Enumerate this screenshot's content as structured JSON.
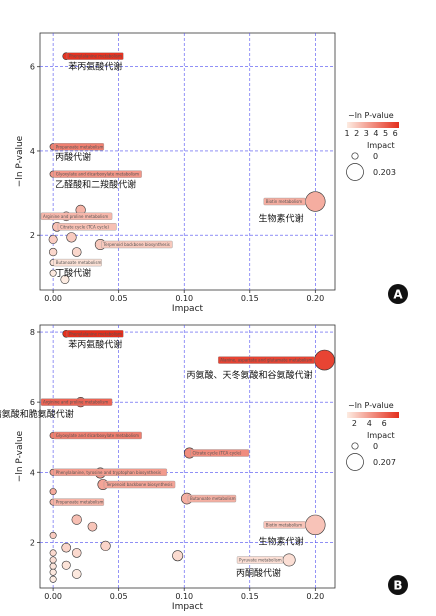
{
  "chart_data": [
    {
      "panel": "A",
      "type": "scatter",
      "xlabel": "Impact",
      "ylabel": "−ln P-value",
      "xlim": [
        -0.01,
        0.215
      ],
      "ylim": [
        0.7,
        6.8
      ],
      "xticks": [
        0.0,
        0.05,
        0.1,
        0.15,
        0.2
      ],
      "xtick_labels": [
        "0.00",
        "0.05",
        "0.10",
        "0.15",
        "0.20"
      ],
      "yticks": [
        2,
        4,
        6
      ],
      "grid": true,
      "legend": {
        "color_title": "−ln P-value",
        "color_ticks": [
          "1",
          "2",
          "3",
          "4",
          "5",
          "6"
        ],
        "color_min": 1,
        "color_max": 6.4,
        "size_title": "Impact",
        "size_items": [
          "0",
          "0.203"
        ]
      },
      "points": [
        {
          "x": 0.01,
          "y": 6.25,
          "color": 6.25,
          "size": 0.01,
          "tag": "Phenylalanine metabolism",
          "tag_side": "right",
          "note": "苯丙氨酸代谢"
        },
        {
          "x": 0.0,
          "y": 4.1,
          "color": 4.1,
          "size": 0.0,
          "tag": "Propanoate metabolism",
          "tag_side": "right",
          "note": "丙酸代谢"
        },
        {
          "x": 0.0,
          "y": 3.45,
          "color": 3.45,
          "size": 0.0,
          "tag": "Glyoxylate and dicarboxylate metabolism",
          "tag_side": "right",
          "note": "乙醛酸和二羧酸代谢"
        },
        {
          "x": 0.2,
          "y": 2.8,
          "color": 2.8,
          "size": 0.203,
          "tag": "Biotin metabolism",
          "tag_side": "left",
          "note": "生物素代谢"
        },
        {
          "x": 0.021,
          "y": 2.6,
          "color": 2.6,
          "size": 0.05
        },
        {
          "x": 0.01,
          "y": 2.45,
          "color": 2.5,
          "size": 0.04,
          "tag": "Arginine and proline metabolism",
          "tag_side": "left"
        },
        {
          "x": 0.003,
          "y": 2.2,
          "color": 2.25,
          "size": 0.04,
          "tag": "Citrate cycle (TCA cycle)",
          "tag_side": "right"
        },
        {
          "x": 0.036,
          "y": 1.78,
          "color": 2.0,
          "size": 0.06,
          "tag": "Terpenoid backbone biosynthesis",
          "tag_side": "right"
        },
        {
          "x": 0.0,
          "y": 1.9,
          "color": 1.9,
          "size": 0.03
        },
        {
          "x": 0.014,
          "y": 1.95,
          "color": 1.95,
          "size": 0.05
        },
        {
          "x": 0.018,
          "y": 1.6,
          "color": 1.6,
          "size": 0.04
        },
        {
          "x": 0.0,
          "y": 1.6,
          "color": 1.6,
          "size": 0.02
        },
        {
          "x": 0.0,
          "y": 1.35,
          "color": 1.35,
          "size": 0.0,
          "tag": "Butanoate metabolism",
          "tag_side": "right",
          "note": "丁酸代谢"
        },
        {
          "x": 0.0,
          "y": 1.1,
          "color": 1.05,
          "size": 0.0
        },
        {
          "x": 0.009,
          "y": 0.95,
          "color": 1.0,
          "size": 0.03
        }
      ]
    },
    {
      "panel": "B",
      "type": "scatter",
      "xlabel": "Impact",
      "ylabel": "−ln P-value",
      "xlim": [
        -0.01,
        0.215
      ],
      "ylim": [
        0.7,
        8.2
      ],
      "xticks": [
        0.0,
        0.05,
        0.1,
        0.15,
        0.2
      ],
      "xtick_labels": [
        "0.00",
        "0.05",
        "0.10",
        "0.15",
        "0.20"
      ],
      "yticks": [
        2,
        4,
        6,
        8
      ],
      "grid": true,
      "legend": {
        "color_title": "−ln P-value",
        "color_ticks": [
          "2",
          "4",
          "6"
        ],
        "color_min": 1,
        "color_max": 8,
        "size_title": "Impact",
        "size_items": [
          "0",
          "0.207"
        ]
      },
      "points": [
        {
          "x": 0.01,
          "y": 7.95,
          "color": 7.95,
          "size": 0.01,
          "tag": "Phenylalanine metabolism",
          "tag_side": "right",
          "note": "苯丙氨酸代谢"
        },
        {
          "x": 0.207,
          "y": 7.2,
          "color": 7.2,
          "size": 0.207,
          "tag": "Alanine, aspartate and glutamate metabolism",
          "tag_side": "left",
          "note": "丙氨酸、天冬氨酸和谷氨酸代谢"
        },
        {
          "x": 0.021,
          "y": 6.0,
          "color": 6.0,
          "size": 0.05,
          "tag": "Arginine and proline metabolism",
          "tag_side": "left",
          "note": "精氨酸和脆氨酸代谢"
        },
        {
          "x": 0.0,
          "y": 5.05,
          "color": 5.05,
          "size": 0.0,
          "tag": "Glyoxylate and dicarboxylate metabolism",
          "tag_side": "right"
        },
        {
          "x": 0.104,
          "y": 4.55,
          "color": 4.55,
          "size": 0.06,
          "tag": "Citrate cycle (TCA cycle)",
          "tag_side": "right"
        },
        {
          "x": 0.0,
          "y": 4.0,
          "color": 4.0,
          "size": 0.0,
          "tag": "Phenylalanine, tyrosine and tryptophan biosynthesis",
          "tag_side": "right"
        },
        {
          "x": 0.036,
          "y": 3.98,
          "color": 3.98,
          "size": 0.06
        },
        {
          "x": 0.038,
          "y": 3.65,
          "color": 3.65,
          "size": 0.06,
          "tag": "Terpenoid backbone biosynthesis",
          "tag_side": "right"
        },
        {
          "x": 0.102,
          "y": 3.25,
          "color": 3.25,
          "size": 0.07,
          "tag": "Butanoate metabolism",
          "tag_side": "right"
        },
        {
          "x": 0.0,
          "y": 3.45,
          "color": 3.45,
          "size": 0.0
        },
        {
          "x": 0.0,
          "y": 3.15,
          "color": 3.15,
          "size": 0.0,
          "tag": "Propanoate metabolism",
          "tag_side": "right"
        },
        {
          "x": 0.2,
          "y": 2.5,
          "color": 2.5,
          "size": 0.203,
          "tag": "Biotin metabolism",
          "tag_side": "left",
          "note": "生物素代谢"
        },
        {
          "x": 0.018,
          "y": 2.65,
          "color": 2.65,
          "size": 0.05
        },
        {
          "x": 0.03,
          "y": 2.45,
          "color": 2.45,
          "size": 0.04
        },
        {
          "x": 0.0,
          "y": 2.2,
          "color": 2.2,
          "size": 0.0
        },
        {
          "x": 0.01,
          "y": 1.85,
          "color": 1.85,
          "size": 0.04
        },
        {
          "x": 0.04,
          "y": 1.9,
          "color": 1.9,
          "size": 0.05
        },
        {
          "x": 0.018,
          "y": 1.7,
          "color": 1.7,
          "size": 0.04
        },
        {
          "x": 0.0,
          "y": 1.7,
          "color": 1.7,
          "size": 0.0
        },
        {
          "x": 0.0,
          "y": 1.5,
          "color": 1.5,
          "size": 0.0
        },
        {
          "x": 0.0,
          "y": 1.32,
          "color": 1.3,
          "size": 0.0
        },
        {
          "x": 0.01,
          "y": 1.35,
          "color": 1.35,
          "size": 0.03
        },
        {
          "x": 0.0,
          "y": 1.15,
          "color": 1.15,
          "size": 0.0
        },
        {
          "x": 0.018,
          "y": 1.1,
          "color": 1.1,
          "size": 0.04
        },
        {
          "x": 0.0,
          "y": 0.95,
          "color": 0.95,
          "size": 0.0
        },
        {
          "x": 0.095,
          "y": 1.62,
          "color": 1.62,
          "size": 0.06
        },
        {
          "x": 0.18,
          "y": 1.5,
          "color": 1.5,
          "size": 0.09,
          "tag": "Pyruvate metabolism",
          "tag_side": "left",
          "note": "丙酮酸代谢"
        }
      ]
    }
  ]
}
